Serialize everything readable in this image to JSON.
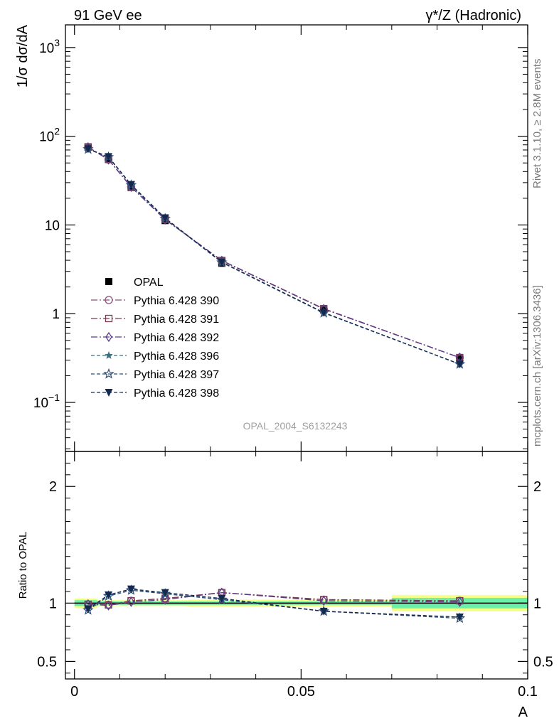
{
  "header": {
    "left_label": "91 GeV ee",
    "right_label": "γ*/Z (Hadronic)"
  },
  "side_text": {
    "rivet": "Rivet 3.1.10, ≥ 2.8M events",
    "source": "mcplots.cern.ch [arXiv:1306.3436]"
  },
  "watermark": "OPAL_2004_S6132243",
  "colors": {
    "band_outer": "#f5ff85",
    "band_inner": "#6cf0a8",
    "data": "#000000"
  },
  "chart_data": [
    {
      "type": "line",
      "panel": "main",
      "ylabel": "1/σ dσ/dA",
      "y_scale": "log",
      "ylim": [
        0.028,
        1800
      ],
      "xlim": [
        -0.002,
        0.1
      ],
      "y_tick_labels": [
        "10^-1",
        "1",
        "10",
        "10^2",
        "10^3"
      ],
      "legend_placement": "center-left",
      "x": [
        0.003,
        0.0075,
        0.0125,
        0.02,
        0.0325,
        0.055,
        0.085
      ],
      "series": [
        {
          "name": "OPAL",
          "marker": "square-filled",
          "color": "#000000",
          "dash": "none",
          "values": [
            76,
            56,
            26.5,
            11.2,
            3.7,
            1.1,
            0.31
          ]
        },
        {
          "name": "Pythia 6.428 390",
          "marker": "circle-open",
          "color": "#8a4f7d",
          "dash": "9,3,2,3",
          "values": [
            75,
            54.5,
            26.8,
            11.5,
            3.95,
            1.13,
            0.32
          ]
        },
        {
          "name": "Pythia 6.428 391",
          "marker": "square-open",
          "color": "#7a3a4e",
          "dash": "9,3,2,3",
          "values": [
            75.5,
            54.7,
            26.9,
            11.6,
            3.98,
            1.14,
            0.32
          ]
        },
        {
          "name": "Pythia 6.428 392",
          "marker": "diamond-open",
          "color": "#5b3a8c",
          "dash": "9,3,2,3",
          "values": [
            75.2,
            54.6,
            26.8,
            11.5,
            3.96,
            1.13,
            0.32
          ]
        },
        {
          "name": "Pythia 6.428 396",
          "marker": "star-filled",
          "color": "#3f6f7f",
          "dash": "5,3",
          "values": [
            72,
            58.5,
            28.2,
            11.9,
            3.8,
            1.02,
            0.27
          ]
        },
        {
          "name": "Pythia 6.428 397",
          "marker": "star-open",
          "color": "#2f4d78",
          "dash": "5,3",
          "values": [
            71.5,
            58.2,
            28.1,
            11.8,
            3.78,
            1.02,
            0.27
          ]
        },
        {
          "name": "Pythia 6.428 398",
          "marker": "triangle-down-filled",
          "color": "#15294f",
          "dash": "5,3",
          "values": [
            72,
            58.8,
            28.5,
            12.0,
            3.82,
            1.03,
            0.27
          ]
        }
      ]
    },
    {
      "type": "line",
      "panel": "ratio",
      "xlabel": "A",
      "ylabel": "Ratio to OPAL",
      "ylim": [
        0.35,
        2.3
      ],
      "xlim": [
        -0.002,
        0.1
      ],
      "y_tick_labels": [
        "0.5",
        "1",
        "2"
      ],
      "x_tick_labels": [
        "0",
        "0.05",
        "0.1"
      ],
      "x": [
        0.003,
        0.0075,
        0.0125,
        0.02,
        0.0325,
        0.055,
        0.085
      ],
      "uncertainty_bands": [
        {
          "x_range": [
            0,
            0.005
          ],
          "inner": [
            0.975,
            1.025
          ],
          "outer": [
            0.96,
            1.04
          ]
        },
        {
          "x_range": [
            0.005,
            0.01
          ],
          "inner": [
            0.985,
            1.015
          ],
          "outer": [
            0.975,
            1.025
          ]
        },
        {
          "x_range": [
            0.01,
            0.015
          ],
          "inner": [
            0.985,
            1.015
          ],
          "outer": [
            0.975,
            1.025
          ]
        },
        {
          "x_range": [
            0.015,
            0.025
          ],
          "inner": [
            0.985,
            1.015
          ],
          "outer": [
            0.975,
            1.025
          ]
        },
        {
          "x_range": [
            0.025,
            0.04
          ],
          "inner": [
            0.985,
            1.015
          ],
          "outer": [
            0.97,
            1.03
          ]
        },
        {
          "x_range": [
            0.04,
            0.07
          ],
          "inner": [
            0.985,
            1.015
          ],
          "outer": [
            0.97,
            1.03
          ]
        },
        {
          "x_range": [
            0.07,
            0.1
          ],
          "inner": [
            0.955,
            1.045
          ],
          "outer": [
            0.93,
            1.07
          ]
        }
      ],
      "series": [
        {
          "name": "Pythia 6.428 390",
          "values": [
            0.99,
            0.985,
            1.02,
            1.04,
            1.09,
            1.03,
            1.02
          ]
        },
        {
          "name": "Pythia 6.428 391",
          "values": [
            0.99,
            0.985,
            1.02,
            1.04,
            1.09,
            1.03,
            1.02
          ]
        },
        {
          "name": "Pythia 6.428 392",
          "values": [
            0.99,
            0.98,
            1.01,
            1.03,
            1.09,
            1.02,
            1.01
          ]
        },
        {
          "name": "Pythia 6.428 396",
          "values": [
            0.95,
            1.07,
            1.12,
            1.08,
            1.03,
            0.93,
            0.88
          ]
        },
        {
          "name": "Pythia 6.428 397",
          "values": [
            0.94,
            1.06,
            1.11,
            1.08,
            1.03,
            0.93,
            0.87
          ]
        },
        {
          "name": "Pythia 6.428 398",
          "values": [
            0.95,
            1.07,
            1.12,
            1.09,
            1.04,
            0.93,
            0.88
          ]
        }
      ]
    }
  ]
}
